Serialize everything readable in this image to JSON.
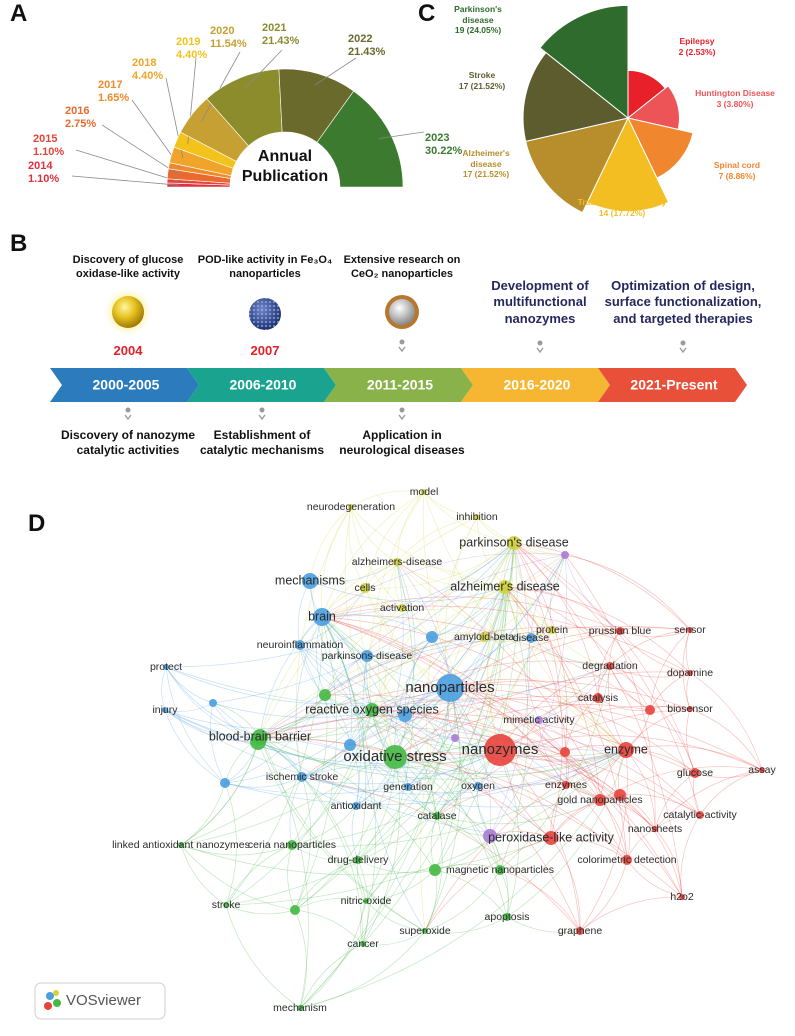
{
  "chart_data": [
    {
      "type": "donut",
      "half": true,
      "panel": "A",
      "center_label": "Annual Publication",
      "categories": [
        "2014",
        "2015",
        "2016",
        "2017",
        "2018",
        "2019",
        "2020",
        "2021",
        "2022",
        "2023"
      ],
      "values": [
        1.1,
        1.1,
        2.75,
        1.65,
        4.4,
        4.4,
        11.54,
        21.43,
        21.43,
        30.22
      ],
      "value_labels": [
        "1.10%",
        "1.10%",
        "2.75%",
        "1.65%",
        "4.40%",
        "4.40%",
        "11.54%",
        "21.43%",
        "21.43%",
        "30.22%"
      ],
      "colors": [
        "#e0303e",
        "#e4443a",
        "#e86a2e",
        "#ef8a2c",
        "#f0a52a",
        "#f3c31c",
        "#c6a032",
        "#8c8c2c",
        "#6a6a2c",
        "#3c7a30"
      ]
    },
    {
      "type": "rose",
      "panel": "C",
      "categories": [
        "Epilepsy",
        "Huntington Disease",
        "Spinal cord",
        "Traumatic brain injury",
        "Alzheimer's disease",
        "Stroke",
        "Parkinson's disease"
      ],
      "values": [
        2,
        3,
        7,
        14,
        17,
        17,
        19
      ],
      "value_labels": [
        "2 (2.53%)",
        "3 (3.80%)",
        "7 (8.86%)",
        "14 (17.72%)",
        "17 (21.52%)",
        "17 (21.52%)",
        "19 (24.05%)"
      ],
      "colors": [
        "#e8202a",
        "#ec5458",
        "#f0862e",
        "#f3be22",
        "#b88e2c",
        "#5c5c2e",
        "#2f6b2d"
      ]
    }
  ],
  "timeline": {
    "panel": "B",
    "periods": [
      {
        "name": "2000-2005",
        "color": "#2b7bbd"
      },
      {
        "name": "2006-2010",
        "color": "#1aa48f"
      },
      {
        "name": "2011-2015",
        "color": "#8ab24a"
      },
      {
        "name": "2016-2020",
        "color": "#f6b631"
      },
      {
        "name": "2021-Present",
        "color": "#e8503a"
      }
    ],
    "above": [
      {
        "text": "Discovery of glucose\noxidase-like activity",
        "year": "2004"
      },
      {
        "text": "POD-like activity in Fe₃O₄\nnanoparticles",
        "year": "2007"
      },
      {
        "text": "Extensive research on\nCeO₂ nanoparticles"
      },
      {
        "text": "Development of\nmultifunctional\nnanozymes"
      },
      {
        "text": "Optimization of design,\nsurface functionalization,\nand targeted therapies"
      }
    ],
    "below": [
      {
        "text": "Discovery of nanozyme\ncatalytic activities"
      },
      {
        "text": "Establishment of\ncatalytic mechanisms"
      },
      {
        "text": "Application in\nneurological diseases"
      }
    ]
  },
  "network": {
    "panel": "D",
    "watermark": "VOSviewer",
    "nodes": [
      {
        "label": "model",
        "color": "#d2d23c"
      },
      {
        "label": "neurodegeneration",
        "color": "#d2d23c"
      },
      {
        "label": "inhibition",
        "color": "#d2d23c"
      },
      {
        "label": "parkinson's disease",
        "color": "#d2d23c"
      },
      {
        "label": "alzheimers-disease",
        "color": "#d2d23c"
      },
      {
        "label": "cells",
        "color": "#d2d23c"
      },
      {
        "label": "alzheimer's disease",
        "color": "#d2d23c"
      },
      {
        "label": "activation",
        "color": "#d2d23c"
      },
      {
        "label": "amyloid-beta",
        "color": "#d2d23c"
      },
      {
        "label": "protein",
        "color": "#d2d23c"
      },
      {
        "label": "mechanisms",
        "color": "#4a9ee0"
      },
      {
        "label": "brain",
        "color": "#4a9ee0"
      },
      {
        "label": "neuroinflammation",
        "color": "#4a9ee0"
      },
      {
        "label": "parkinsons-disease",
        "color": "#4a9ee0"
      },
      {
        "label": "protect",
        "color": "#4a9ee0"
      },
      {
        "label": "injury",
        "color": "#4a9ee0"
      },
      {
        "label": "nanoparticles",
        "color": "#4a9ee0"
      },
      {
        "label": "disease",
        "color": "#4a9ee0"
      },
      {
        "label": "ischemic stroke",
        "color": "#4a9ee0"
      },
      {
        "label": "antioxidant",
        "color": "#4a9ee0"
      },
      {
        "label": "generation",
        "color": "#4a9ee0"
      },
      {
        "label": "oxygen",
        "color": "#4a9ee0"
      },
      {
        "label": "reactive oxygen species",
        "color": "#44b944"
      },
      {
        "label": "blood-brain barrier",
        "color": "#44b944"
      },
      {
        "label": "oxidative stress",
        "color": "#44b944"
      },
      {
        "label": "catalase",
        "color": "#44b944"
      },
      {
        "label": "linked antioxidant nanozymes",
        "color": "#44b944"
      },
      {
        "label": "ceria nanoparticles",
        "color": "#44b944"
      },
      {
        "label": "drug-delivery",
        "color": "#44b944"
      },
      {
        "label": "nitric-oxide",
        "color": "#44b944"
      },
      {
        "label": "stroke",
        "color": "#44b944"
      },
      {
        "label": "cancer",
        "color": "#44b944"
      },
      {
        "label": "superoxide",
        "color": "#44b944"
      },
      {
        "label": "apoptosis",
        "color": "#44b944"
      },
      {
        "label": "magnetic nanoparticles",
        "color": "#44b944"
      },
      {
        "label": "mechanism",
        "color": "#44b944"
      },
      {
        "label": "nanozymes",
        "color": "#e8423c"
      },
      {
        "label": "prussian blue",
        "color": "#e8423c"
      },
      {
        "label": "sensor",
        "color": "#e8423c"
      },
      {
        "label": "degradation",
        "color": "#e8423c"
      },
      {
        "label": "dopamine",
        "color": "#e8423c"
      },
      {
        "label": "catalysis",
        "color": "#e8423c"
      },
      {
        "label": "biosensor",
        "color": "#e8423c"
      },
      {
        "label": "enzyme",
        "color": "#e8423c"
      },
      {
        "label": "glucose",
        "color": "#e8423c"
      },
      {
        "label": "assay",
        "color": "#e8423c"
      },
      {
        "label": "gold nanoparticles",
        "color": "#e8423c"
      },
      {
        "label": "catalytic-activity",
        "color": "#e8423c"
      },
      {
        "label": "nanosheets",
        "color": "#e8423c"
      },
      {
        "label": "colorimetric detection",
        "color": "#e8423c"
      },
      {
        "label": "h2o2",
        "color": "#e8423c"
      },
      {
        "label": "graphene",
        "color": "#e8423c"
      },
      {
        "label": "enzymes",
        "color": "#e8423c"
      },
      {
        "label": "peroxidase-like activity",
        "color": "#e8423c"
      },
      {
        "label": "mimetic activity",
        "color": "#a97bd6"
      }
    ]
  }
}
